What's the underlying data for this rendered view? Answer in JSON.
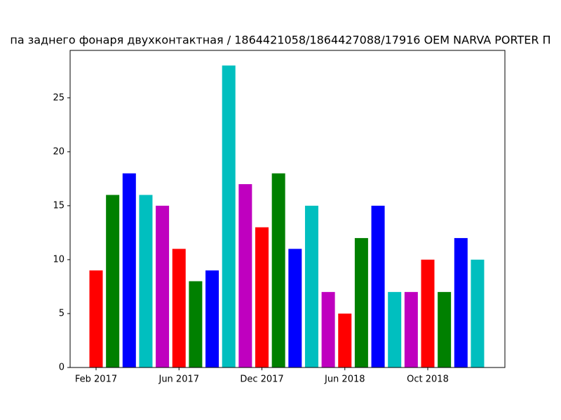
{
  "chart_data": {
    "type": "bar",
    "title": "па заднего фонаря двухконтактная / 1864421058/1864427088/17916 OEM NARVA PORTER П",
    "categories": [
      "Feb 2017",
      null,
      null,
      null,
      null,
      "Jun 2017",
      null,
      null,
      null,
      null,
      "Dec 2017",
      null,
      null,
      null,
      null,
      "Jun 2018",
      null,
      null,
      null,
      null,
      "Oct 2018",
      null,
      null,
      null
    ],
    "values": [
      9,
      16,
      18,
      16,
      15,
      11,
      8,
      9,
      28,
      17,
      13,
      18,
      11,
      15,
      7,
      5,
      12,
      15,
      7,
      7,
      10,
      7,
      12,
      10
    ],
    "colors": [
      "#ff0000",
      "#008000",
      "#0000ff",
      "#00bfbf",
      "#bf00bf",
      "#ff0000",
      "#008000",
      "#0000ff",
      "#00bfbf",
      "#bf00bf",
      "#ff0000",
      "#008000",
      "#0000ff",
      "#00bfbf",
      "#bf00bf",
      "#ff0000",
      "#008000",
      "#0000ff",
      "#00bfbf",
      "#bf00bf",
      "#ff0000",
      "#008000",
      "#0000ff",
      "#00bfbf"
    ],
    "ylim": [
      0,
      29.4
    ],
    "yticks": [
      0,
      5,
      10,
      15,
      20,
      25
    ],
    "grid": false
  }
}
